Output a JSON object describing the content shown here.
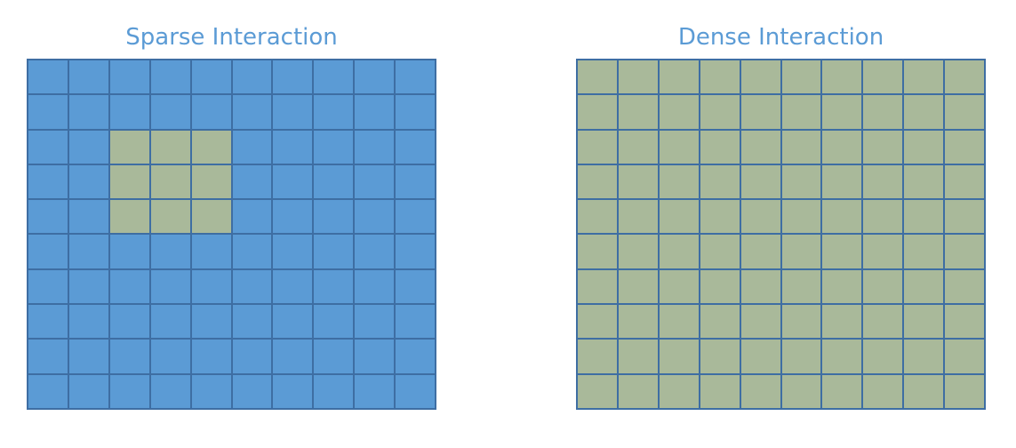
{
  "colors": {
    "title": "#5b9bd5",
    "inactive_cell": "#5b9bd5",
    "active_cell": "#a9b99a",
    "grid_line": "#3e6ea3"
  },
  "panels": [
    {
      "id": "sparse",
      "title": "Sparse Interaction",
      "rows": 10,
      "cols": 10,
      "active_region": {
        "row_start": 2,
        "row_end": 4,
        "col_start": 2,
        "col_end": 4
      }
    },
    {
      "id": "dense",
      "title": "Dense Interaction",
      "rows": 10,
      "cols": 10,
      "active_region": {
        "row_start": 0,
        "row_end": 9,
        "col_start": 0,
        "col_end": 9
      }
    }
  ]
}
